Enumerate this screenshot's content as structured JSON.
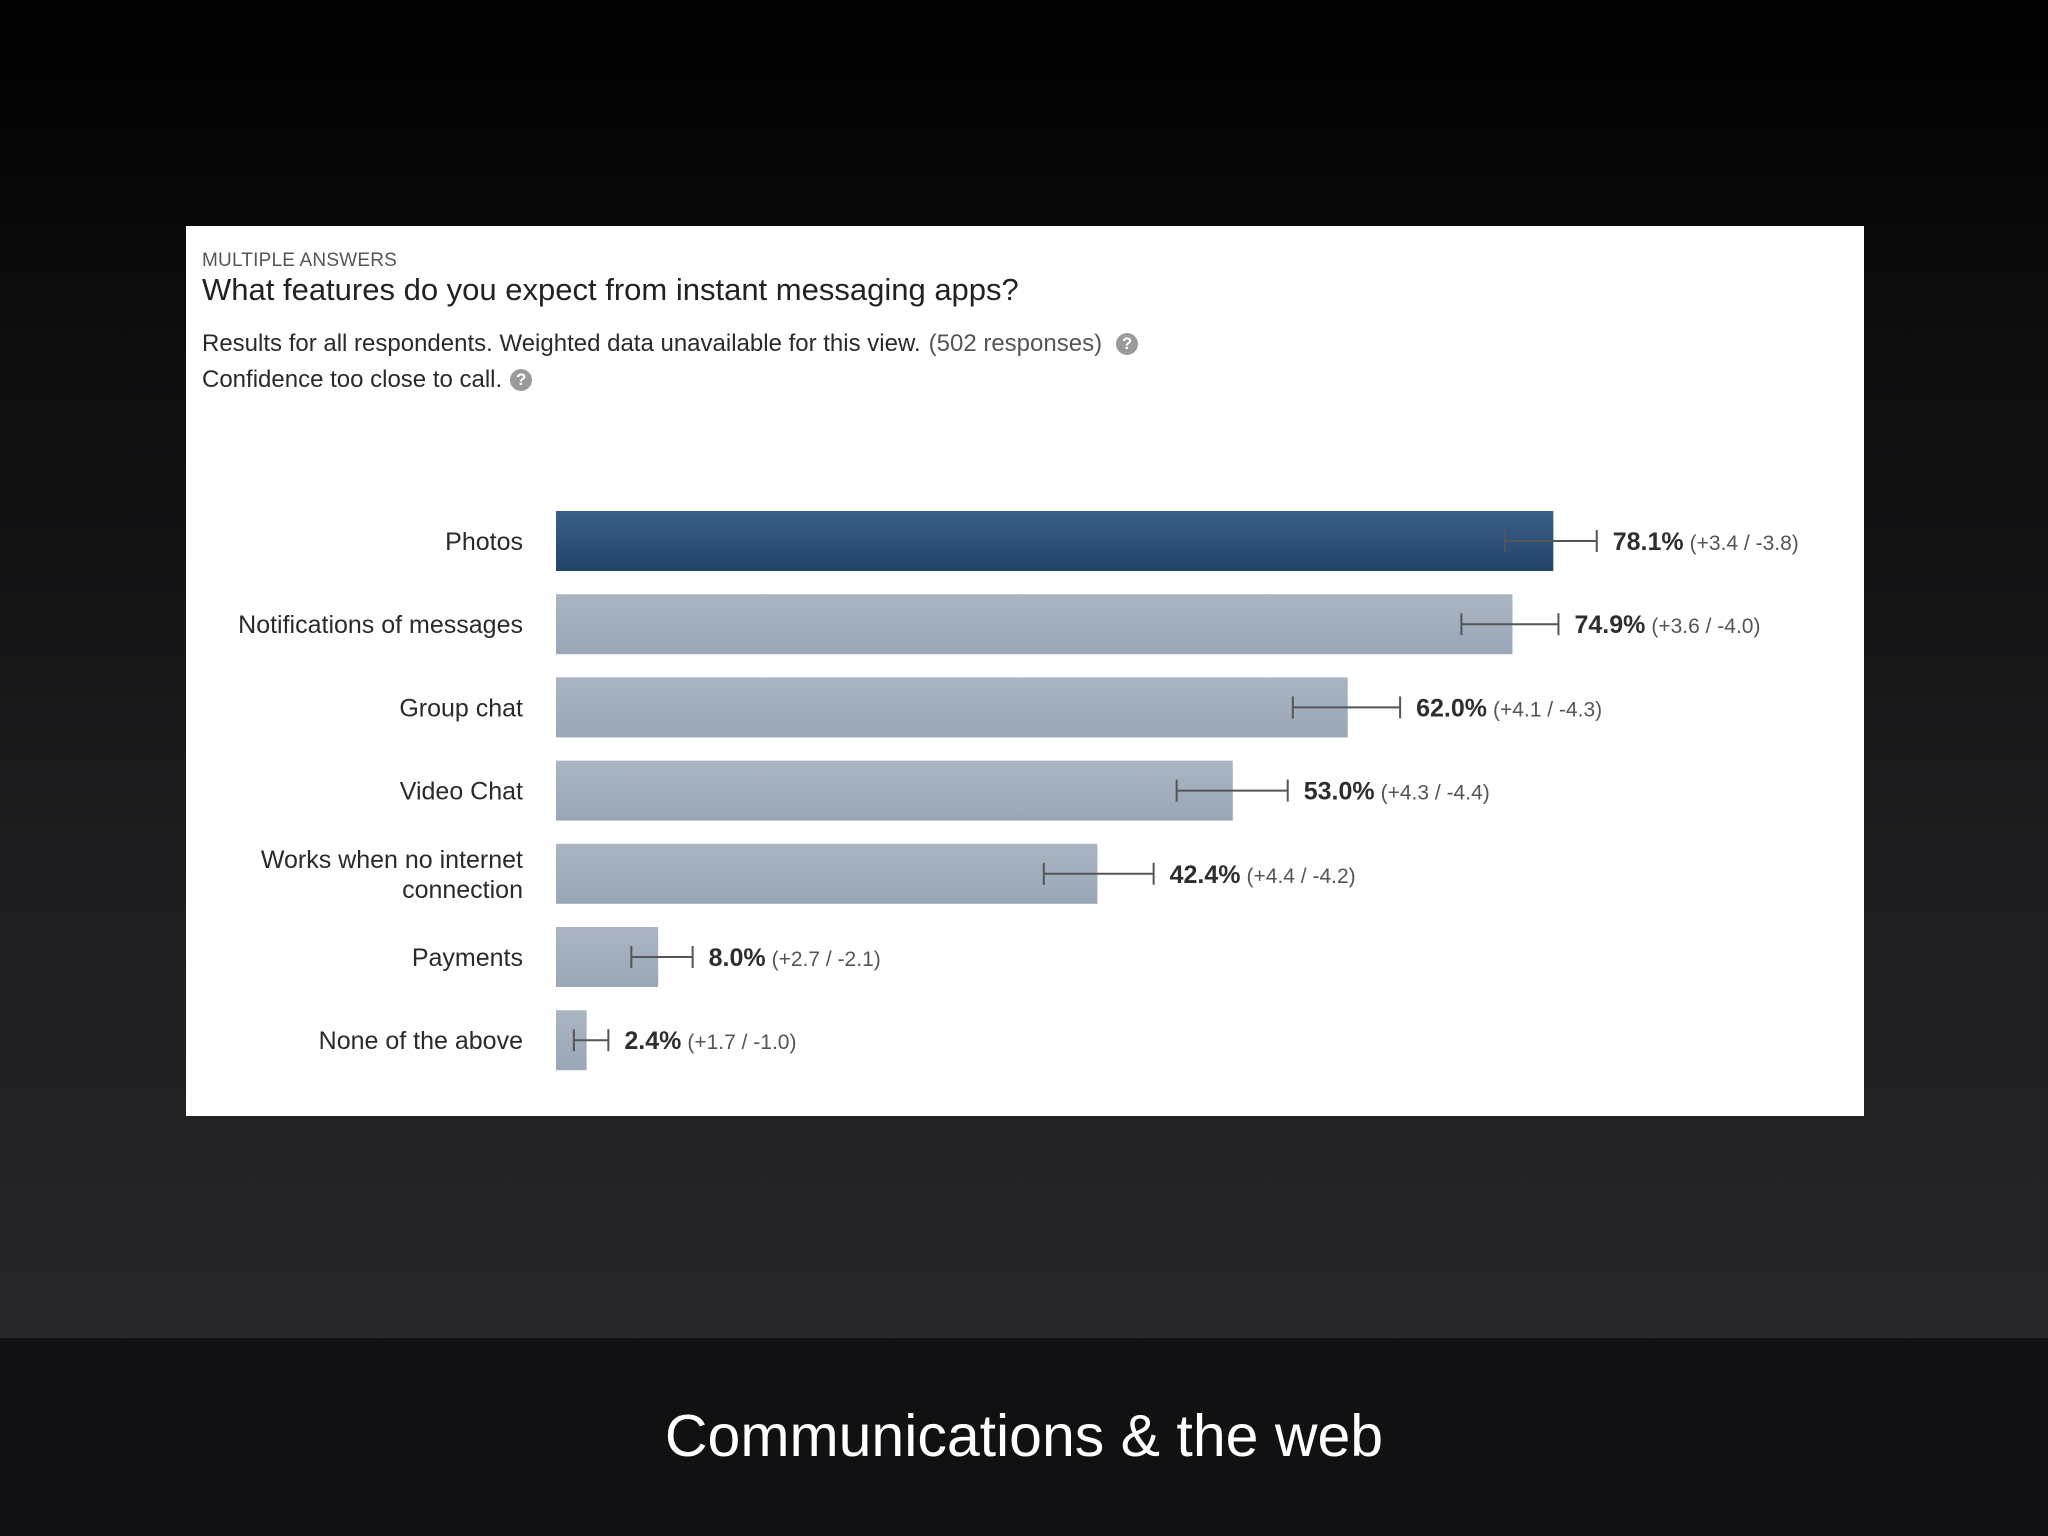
{
  "slide": {
    "title": "Communications & the web"
  },
  "card": {
    "kicker": "MULTIPLE ANSWERS",
    "question": "What features do you expect from instant messaging apps?",
    "results_text": "Results for all respondents. Weighted data unavailable for this view.",
    "responses_text": "(502 responses)",
    "confidence_text": "Confidence too close to call."
  },
  "chart_data": {
    "type": "bar",
    "orientation": "horizontal",
    "categories": [
      "Photos",
      "Notifications of messages",
      "Group chat",
      "Video Chat",
      "Works when no internet connection",
      "Payments",
      "None of the above"
    ],
    "values": [
      78.1,
      74.9,
      62.0,
      53.0,
      42.4,
      8.0,
      2.4
    ],
    "value_labels": [
      "78.1%",
      "74.9%",
      "62.0%",
      "53.0%",
      "42.4%",
      "8.0%",
      "2.4%"
    ],
    "margins": [
      "(+3.4 / -3.8)",
      "(+3.6 / -4.0)",
      "(+4.1 / -4.3)",
      "(+4.3 / -4.4)",
      "(+4.4 / -4.2)",
      "(+2.7 / -2.1)",
      "(+1.7 / -1.0)"
    ],
    "error_plus": [
      3.4,
      3.6,
      4.1,
      4.3,
      4.4,
      2.7,
      1.7
    ],
    "error_minus": [
      3.8,
      4.0,
      4.3,
      4.4,
      4.2,
      2.1,
      1.0
    ],
    "highlight_index": 0,
    "colors": {
      "highlight": "#2d4f76",
      "bar": "#a3afbd",
      "error_bar": "#555555"
    },
    "xlim": [
      0,
      100
    ],
    "grid": false
  }
}
